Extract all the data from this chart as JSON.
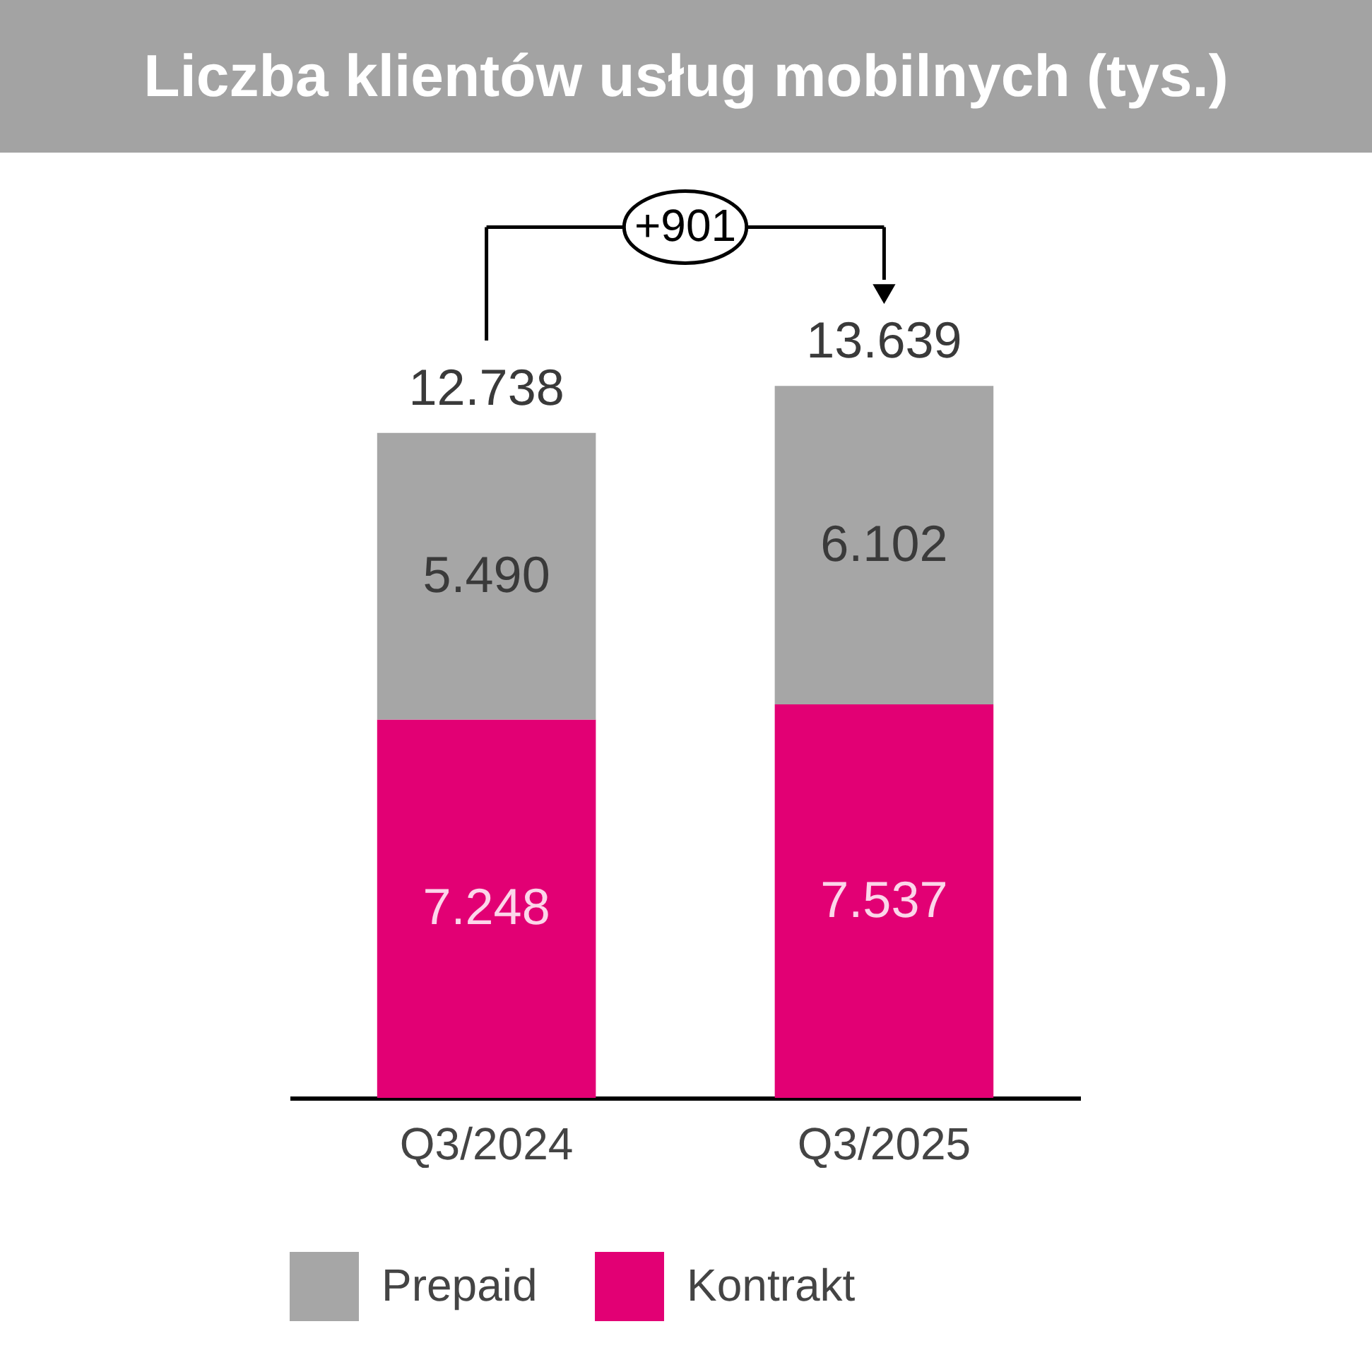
{
  "chart_data": {
    "type": "bar",
    "title": "Liczba klientów usług mobilnych (tys.)",
    "categories": [
      "Q3/2024",
      "Q3/2025"
    ],
    "stacked": true,
    "series": [
      {
        "name": "Kontrakt",
        "color": "#e20074",
        "values": [
          7248,
          7537
        ],
        "value_labels": [
          "7.248",
          "7.537"
        ]
      },
      {
        "name": "Prepaid",
        "color": "#a6a6a6",
        "values": [
          5490,
          6102
        ],
        "value_labels": [
          "5.490",
          "6.102"
        ]
      }
    ],
    "totals": [
      "12.738",
      "13.639"
    ],
    "annotations": [
      "+901"
    ],
    "legend": "bottom",
    "grid": false
  }
}
